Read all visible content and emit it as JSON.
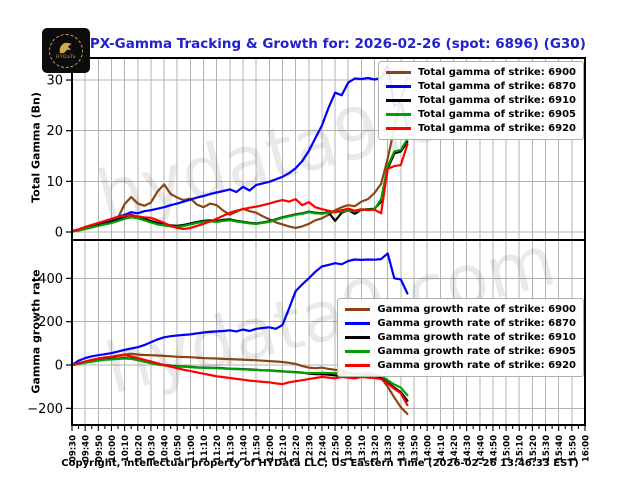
{
  "title": "SPX-Gamma Tracking & Growth for: 2026-02-26 (spot: 6896) (G30)",
  "footer": "Copyright, intellectual property of HYData LLC; US Eastern Time (2026-02-26 13:46:33 EST)",
  "watermark": "hydata9.com",
  "logo": {
    "text": "HYDaTa"
  },
  "colors": {
    "title_text": "#2222cc",
    "grid": "#b3b3b3",
    "axis": "#000000",
    "watermark": "rgba(0,0,0,0.085)",
    "strike_6900": "#8B4513",
    "strike_6870": "#0000FF",
    "strike_6910": "#000000",
    "strike_6905": "#00A000",
    "strike_6920": "#FF0000"
  },
  "x_axis": {
    "step_minutes_between_points": 5,
    "tick_interval_minutes": 10,
    "labels": [
      "09:30",
      "09:40",
      "09:50",
      "10:00",
      "10:10",
      "10:20",
      "10:30",
      "10:40",
      "10:50",
      "11:00",
      "11:10",
      "11:20",
      "11:30",
      "11:40",
      "11:50",
      "12:00",
      "12:10",
      "12:20",
      "12:30",
      "12:40",
      "12:50",
      "13:00",
      "13:10",
      "13:20",
      "13:30",
      "13:40",
      "13:50",
      "14:00",
      "14:10",
      "14:20",
      "14:30",
      "14:40",
      "14:50",
      "15:00",
      "15:10",
      "15:20",
      "15:30",
      "15:40",
      "15:50",
      "16:00"
    ]
  },
  "chart_data": [
    {
      "type": "line",
      "ylabel": "Total Gamma (Bn)",
      "ylim": [
        -1.58,
        34.35
      ],
      "y_ticks": [
        {
          "v": 0,
          "label": "0"
        },
        {
          "v": 10,
          "label": "10"
        },
        {
          "v": 20,
          "label": "20"
        },
        {
          "v": 30,
          "label": "30"
        }
      ],
      "grid": true,
      "legend_position": "upper right",
      "legend": [
        {
          "label": "Total gamma of strike: 6900",
          "color": "#8B4513"
        },
        {
          "label": "Total gamma of strike: 6870",
          "color": "#0000FF"
        },
        {
          "label": "Total gamma of strike: 6910",
          "color": "#000000"
        },
        {
          "label": "Total gamma of strike: 6905",
          "color": "#00A000"
        },
        {
          "label": "Total gamma of strike: 6920",
          "color": "#FF0000"
        }
      ],
      "series": [
        {
          "name": "6900",
          "color": "#8B4513",
          "y": [
            0.2,
            0.5,
            0.9,
            1.3,
            1.6,
            1.8,
            2.0,
            2.8,
            5.5,
            6.9,
            5.6,
            5.2,
            5.8,
            8.0,
            9.4,
            7.5,
            6.8,
            6.3,
            6.6,
            5.4,
            4.9,
            5.6,
            5.3,
            4.2,
            3.4,
            4.0,
            4.6,
            4.1,
            3.8,
            3.1,
            2.5,
            1.9,
            1.5,
            1.1,
            0.8,
            1.1,
            1.6,
            2.3,
            2.7,
            3.4,
            4.3,
            4.9,
            5.3,
            5.1,
            6.0,
            6.5,
            7.7,
            9.5,
            14.5,
            20.5,
            26.0,
            30.5
          ]
        },
        {
          "name": "6870",
          "color": "#0000FF",
          "y": [
            0.1,
            0.5,
            0.9,
            1.2,
            1.6,
            2.0,
            2.5,
            3.0,
            3.4,
            3.9,
            3.7,
            4.1,
            4.3,
            4.6,
            4.9,
            5.3,
            5.6,
            6.0,
            6.4,
            6.8,
            7.1,
            7.5,
            7.8,
            8.1,
            8.4,
            7.9,
            8.9,
            8.2,
            9.3,
            9.6,
            9.9,
            10.4,
            10.9,
            11.6,
            12.6,
            14.0,
            16.0,
            18.5,
            21.0,
            24.5,
            27.5,
            27.0,
            29.5,
            30.3,
            30.2,
            30.4,
            30.1,
            30.4,
            32.9,
            24.8,
            25.8,
            20.7
          ]
        },
        {
          "name": "6910",
          "color": "#000000",
          "y": [
            0.1,
            0.4,
            0.7,
            1.0,
            1.4,
            1.7,
            2.0,
            2.5,
            3.0,
            3.4,
            3.0,
            2.6,
            2.2,
            1.8,
            1.5,
            1.3,
            1.2,
            1.4,
            1.7,
            2.0,
            2.2,
            2.3,
            2.2,
            2.4,
            2.5,
            2.2,
            2.0,
            1.8,
            1.7,
            1.9,
            2.1,
            2.5,
            2.9,
            3.2,
            3.5,
            3.7,
            4.0,
            3.8,
            3.7,
            3.9,
            2.2,
            3.8,
            4.3,
            3.6,
            4.4,
            4.5,
            4.6,
            6.0,
            12.5,
            15.5,
            15.9,
            17.8
          ]
        },
        {
          "name": "6905",
          "color": "#00A000",
          "y": [
            0.1,
            0.3,
            0.6,
            0.9,
            1.2,
            1.5,
            1.8,
            2.2,
            2.6,
            2.9,
            2.7,
            2.3,
            1.9,
            1.5,
            1.3,
            1.1,
            1.0,
            1.2,
            1.5,
            1.8,
            2.0,
            2.1,
            2.0,
            2.2,
            2.3,
            2.1,
            1.9,
            1.7,
            1.6,
            1.8,
            2.0,
            2.4,
            2.8,
            3.1,
            3.4,
            3.6,
            3.9,
            3.7,
            3.6,
            3.8,
            3.9,
            4.0,
            4.2,
            4.1,
            4.3,
            4.4,
            4.5,
            6.5,
            13.0,
            15.9,
            16.2,
            18.4
          ]
        },
        {
          "name": "6920",
          "color": "#FF0000",
          "y": [
            0.1,
            0.5,
            1.0,
            1.4,
            1.8,
            2.2,
            2.6,
            3.0,
            3.2,
            3.3,
            3.1,
            2.9,
            2.8,
            2.3,
            1.8,
            1.2,
            0.8,
            0.6,
            0.8,
            1.2,
            1.6,
            2.1,
            2.6,
            3.2,
            3.8,
            4.2,
            4.5,
            4.8,
            5.0,
            5.3,
            5.6,
            6.0,
            6.3,
            6.0,
            6.5,
            5.3,
            5.9,
            4.9,
            4.5,
            4.2,
            3.9,
            4.3,
            4.6,
            4.2,
            4.5,
            4.3,
            4.4,
            3.7,
            12.5,
            13.0,
            13.2,
            17.3
          ]
        }
      ]
    },
    {
      "type": "line",
      "ylabel": "Gamma growth rate",
      "ylim": [
        -277,
        577
      ],
      "y_ticks": [
        {
          "v": -200,
          "label": "−200"
        },
        {
          "v": 0,
          "label": "0"
        },
        {
          "v": 200,
          "label": "200"
        },
        {
          "v": 400,
          "label": "400"
        }
      ],
      "grid": true,
      "legend_position": "middle right",
      "legend": [
        {
          "label": "Gamma growth rate of strike: 6900",
          "color": "#8B4513"
        },
        {
          "label": "Gamma growth rate of strike: 6870",
          "color": "#0000FF"
        },
        {
          "label": "Gamma growth rate of strike: 6910",
          "color": "#000000"
        },
        {
          "label": "Gamma growth rate of strike: 6905",
          "color": "#00A000"
        },
        {
          "label": "Gamma growth rate of strike: 6920",
          "color": "#FF0000"
        }
      ],
      "series": [
        {
          "name": "6900",
          "color": "#8B4513",
          "y": [
            0,
            8,
            15,
            22,
            28,
            33,
            38,
            44,
            48,
            52,
            48,
            46,
            45,
            44,
            42,
            40,
            38,
            37,
            36,
            34,
            32,
            31,
            30,
            28,
            27,
            26,
            25,
            23,
            22,
            20,
            18,
            16,
            14,
            10,
            5,
            -5,
            -12,
            -15,
            -12,
            -18,
            -22,
            -25,
            -35,
            -45,
            -40,
            -35,
            -45,
            -60,
            -100,
            -150,
            -195,
            -226
          ]
        },
        {
          "name": "6870",
          "color": "#0000FF",
          "y": [
            0,
            20,
            32,
            40,
            45,
            50,
            55,
            62,
            70,
            76,
            82,
            92,
            105,
            118,
            128,
            133,
            136,
            139,
            141,
            146,
            150,
            153,
            155,
            157,
            160,
            155,
            164,
            157,
            167,
            171,
            174,
            167,
            185,
            260,
            340,
            372,
            400,
            430,
            455,
            462,
            470,
            465,
            480,
            487,
            485,
            487,
            486,
            489,
            515,
            400,
            395,
            330
          ]
        },
        {
          "name": "6910",
          "color": "#000000",
          "y": [
            0,
            6,
            12,
            17,
            22,
            26,
            28,
            30,
            32,
            30,
            24,
            17,
            10,
            4,
            0,
            -3,
            -6,
            -7,
            -9,
            -11,
            -12,
            -13,
            -14,
            -15,
            -17,
            -18,
            -19,
            -21,
            -22,
            -24,
            -25,
            -27,
            -29,
            -31,
            -33,
            -35,
            -40,
            -42,
            -43,
            -45,
            -48,
            -52,
            -55,
            -60,
            -52,
            -50,
            -52,
            -60,
            -80,
            -105,
            -125,
            -165
          ]
        },
        {
          "name": "6905",
          "color": "#00A000",
          "y": [
            0,
            5,
            10,
            15,
            20,
            24,
            26,
            28,
            30,
            28,
            22,
            15,
            8,
            2,
            -2,
            -5,
            -8,
            -8,
            -10,
            -12,
            -13,
            -14,
            -15,
            -16,
            -18,
            -19,
            -20,
            -22,
            -23,
            -25,
            -26,
            -28,
            -30,
            -32,
            -34,
            -36,
            -38,
            -37,
            -36,
            -37,
            -38,
            -39,
            -40,
            -41,
            -40,
            -42,
            -43,
            -50,
            -70,
            -90,
            -105,
            -140
          ]
        },
        {
          "name": "6920",
          "color": "#FF0000",
          "y": [
            0,
            8,
            16,
            24,
            30,
            35,
            38,
            42,
            45,
            40,
            32,
            24,
            16,
            8,
            0,
            -8,
            -15,
            -22,
            -28,
            -34,
            -40,
            -46,
            -52,
            -56,
            -60,
            -64,
            -68,
            -72,
            -75,
            -78,
            -80,
            -85,
            -88,
            -80,
            -75,
            -70,
            -65,
            -60,
            -55,
            -58,
            -62,
            -55,
            -58,
            -62,
            -55,
            -58,
            -60,
            -65,
            -85,
            -110,
            -130,
            -185
          ]
        }
      ]
    }
  ]
}
